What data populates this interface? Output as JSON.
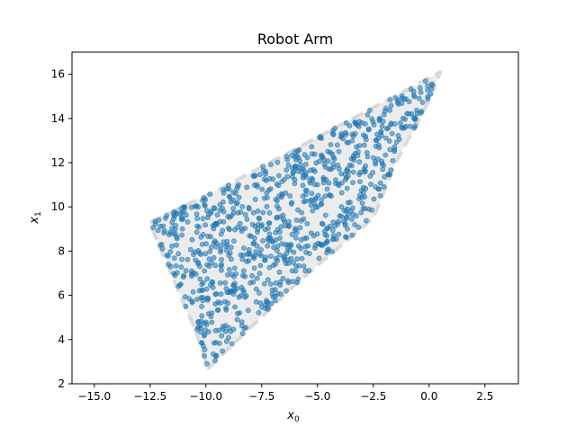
{
  "chart_data": {
    "type": "scatter",
    "title": "Robot Arm",
    "xlabel": "x",
    "xlabel_sub": "0",
    "ylabel": "x",
    "ylabel_sub": "1",
    "xlim": [
      -16,
      4
    ],
    "ylim": [
      2,
      17
    ],
    "xticks": [
      -15,
      -12.5,
      -10,
      -7.5,
      -5,
      -2.5,
      0,
      2.5
    ],
    "xtick_labels": [
      "−15.0",
      "−12.5",
      "−10.0",
      "−7.5",
      "−5.0",
      "−2.5",
      "0.0",
      "2.5"
    ],
    "yticks": [
      2,
      4,
      6,
      8,
      10,
      12,
      14,
      16
    ],
    "ytick_labels": [
      "2",
      "4",
      "6",
      "8",
      "10",
      "12",
      "14",
      "16"
    ],
    "grid": false,
    "region": {
      "boundary": [
        [
          -12.5,
          9.3
        ],
        [
          -9.0,
          11.0
        ],
        [
          0.5,
          16.1
        ],
        [
          0.0,
          14.8
        ],
        [
          -1.5,
          12.0
        ],
        [
          -2.5,
          9.5
        ],
        [
          -6.0,
          6.5
        ],
        [
          -9.9,
          2.7
        ],
        [
          -10.5,
          4.5
        ],
        [
          -12.2,
          8.5
        ]
      ],
      "fill_color": "#ececec",
      "edge_color": "#d9d9d9",
      "line_style": "dashed"
    },
    "point_count": 900,
    "point_color": "#1f77b4",
    "point_alpha": 0.55
  }
}
